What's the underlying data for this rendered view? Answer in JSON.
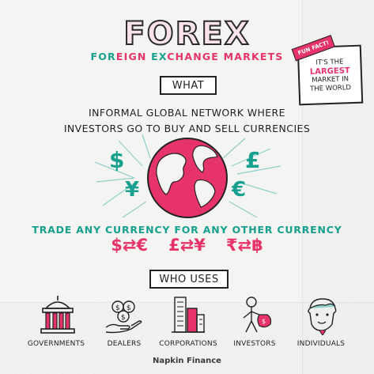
{
  "title": "FOREX",
  "subtitle": {
    "parts": [
      {
        "text": "FOR",
        "color": "teal"
      },
      {
        "text": "EIGN ",
        "color": "pink"
      },
      {
        "text": "EX",
        "color": "teal"
      },
      {
        "text": "CHANGE MARKETS",
        "color": "pink"
      }
    ]
  },
  "what_label": "WHAT",
  "description_line1": "INFORMAL GLOBAL NETWORK WHERE",
  "description_line2": "INVESTORS GO TO BUY AND SELL CURRENCIES",
  "fun_fact": {
    "tag": "FUN FACT!",
    "line1": "IT'S THE",
    "line2": "LARGEST",
    "line3": "MARKET IN",
    "line4": "THE WORLD"
  },
  "currency_symbols": [
    "$",
    "£",
    "¥",
    "€"
  ],
  "trade_text": "TRADE ANY CURRENCY FOR ANY OTHER CURRENCY",
  "pairs": [
    "$⇄€",
    "£⇄¥",
    "₹⇄฿"
  ],
  "who_uses_label": "WHO USES",
  "users": [
    {
      "label": "GOVERNMENTS",
      "icon": "government-building-icon"
    },
    {
      "label": "DEALERS",
      "icon": "money-hand-icon"
    },
    {
      "label": "CORPORATIONS",
      "icon": "skyscrapers-icon"
    },
    {
      "label": "INVESTORS",
      "icon": "investor-with-bag-icon"
    },
    {
      "label": "INDIVIDUALS",
      "icon": "person-face-icon"
    }
  ],
  "brand": "Napkin Finance",
  "colors": {
    "pink": "#e6336b",
    "teal": "#18a08e",
    "ink": "#222222"
  }
}
